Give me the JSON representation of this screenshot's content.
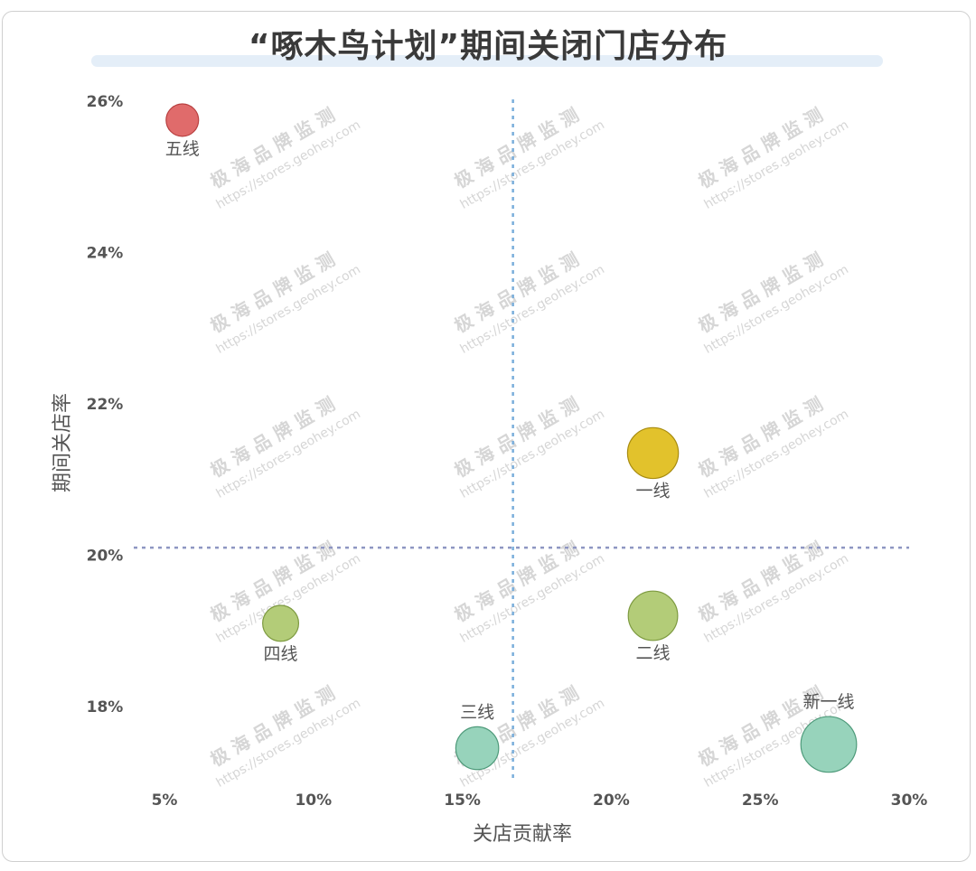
{
  "page": {
    "title": "“啄木鸟计划”期间关闭门店分布"
  },
  "watermark": {
    "brand": "极 海 品 牌 监 测",
    "url": "https://stores.geohey.com"
  },
  "chart_data": {
    "type": "scatter",
    "xlabel": "关店贡献率",
    "ylabel": "期间关店率",
    "xlim": [
      4,
      30
    ],
    "ylim": [
      17,
      26.3
    ],
    "x_ticks": [
      5,
      10,
      15,
      20,
      25,
      30
    ],
    "x_tick_labels": [
      "5%",
      "10%",
      "15%",
      "20%",
      "25%",
      "30%"
    ],
    "y_ticks": [
      18,
      20,
      22,
      24,
      26
    ],
    "y_tick_labels": [
      "18%",
      "20%",
      "22%",
      "24%",
      "26%"
    ],
    "reference_lines": {
      "x": 16.7,
      "y": 20.1
    },
    "points": [
      {
        "label": "五线",
        "x": 5.6,
        "y": 25.75,
        "size": 1,
        "color": "#e06b6b",
        "stroke": "#b84040",
        "label_pos": "below"
      },
      {
        "label": "一线",
        "x": 21.4,
        "y": 21.35,
        "size": 3,
        "color": "#e2c22c",
        "stroke": "#a88c10",
        "label_pos": "below"
      },
      {
        "label": "四线",
        "x": 8.9,
        "y": 19.1,
        "size": 1.3,
        "color": "#b3cc78",
        "stroke": "#7d9a40",
        "label_pos": "below"
      },
      {
        "label": "二线",
        "x": 21.4,
        "y": 19.2,
        "size": 2.8,
        "color": "#b3cc78",
        "stroke": "#7d9a40",
        "label_pos": "below"
      },
      {
        "label": "三线",
        "x": 15.5,
        "y": 17.45,
        "size": 2,
        "color": "#97d3bb",
        "stroke": "#4e9a7a",
        "label_pos": "above"
      },
      {
        "label": "新一线",
        "x": 27.3,
        "y": 17.5,
        "size": 3.7,
        "color": "#97d3bb",
        "stroke": "#4e9a7a",
        "label_pos": "above"
      }
    ]
  }
}
